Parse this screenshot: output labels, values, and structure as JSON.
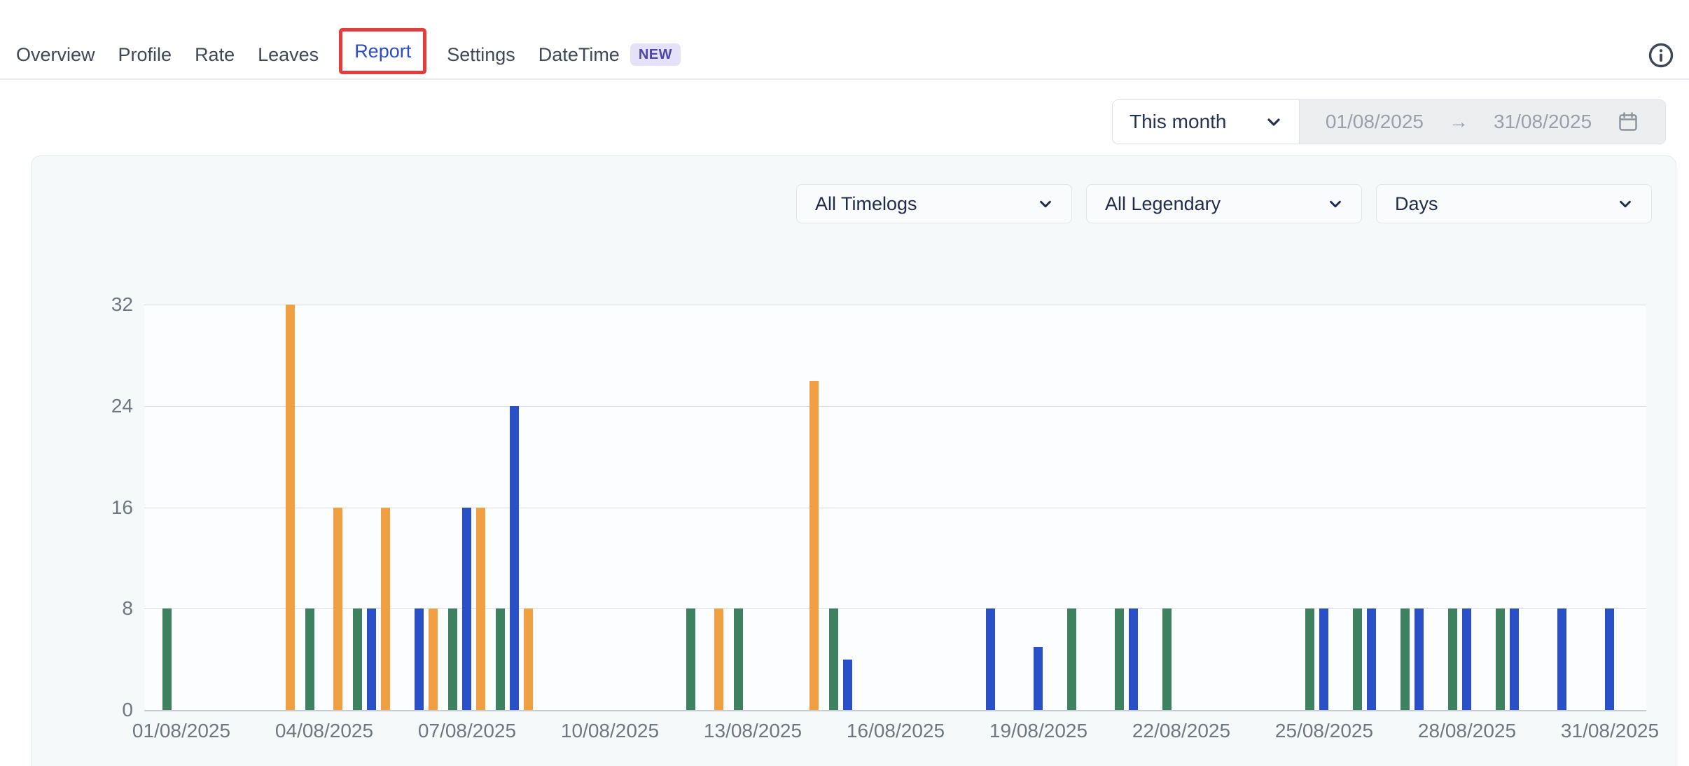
{
  "nav": {
    "tabs": [
      {
        "label": "Overview"
      },
      {
        "label": "Profile"
      },
      {
        "label": "Rate"
      },
      {
        "label": "Leaves"
      },
      {
        "label": "Report",
        "active": true,
        "highlighted_with_red_box": true
      },
      {
        "label": "Settings"
      },
      {
        "label": "DateTime",
        "badge": "NEW"
      }
    ],
    "info_icon": "info-icon"
  },
  "date_range": {
    "preset_label": "This month",
    "start_date": "01/08/2025",
    "arrow": "→",
    "end_date": "31/08/2025",
    "calendar_icon": "calendar-icon"
  },
  "filters": [
    {
      "label": "All Timelogs"
    },
    {
      "label": "All Legendary"
    },
    {
      "label": "Days"
    }
  ],
  "colors": {
    "accent_red_box": "#e23c3c",
    "active_tab_blue": "#2b4bc8",
    "badge_bg": "#e5e1f8",
    "badge_text": "#4f46a5",
    "panel_bg": "#f6f9fa",
    "bar_green": "#3d8160",
    "bar_blue": "#2a50c8",
    "bar_orange": "#f0a042"
  },
  "chart_data": {
    "type": "bar",
    "title": "",
    "xlabel": "",
    "ylabel": "",
    "grid": true,
    "legend": "none",
    "x_axis": {
      "days_in_month": 31,
      "tick_interval_days": 3,
      "tick_labels": [
        "01/08/2025",
        "04/08/2025",
        "07/08/2025",
        "10/08/2025",
        "13/08/2025",
        "16/08/2025",
        "19/08/2025",
        "22/08/2025",
        "25/08/2025",
        "28/08/2025",
        "31/08/2025"
      ]
    },
    "y_axis": {
      "min": 0,
      "max": 32,
      "ticks": [
        0,
        8,
        16,
        24,
        32
      ]
    },
    "series_colors": {
      "green": "#3d8160",
      "blue": "#2a50c8",
      "orange": "#f0a042"
    },
    "bars": [
      {
        "day": 1,
        "date": "01/08/2025",
        "series": "green",
        "value": 8
      },
      {
        "day": 3,
        "date": "03/08/2025",
        "series": "orange",
        "value": 32
      },
      {
        "day": 4,
        "date": "04/08/2025",
        "series": "green",
        "value": 8
      },
      {
        "day": 4,
        "date": "04/08/2025",
        "series": "orange",
        "value": 16
      },
      {
        "day": 5,
        "date": "05/08/2025",
        "series": "green",
        "value": 8
      },
      {
        "day": 5,
        "date": "05/08/2025",
        "series": "blue",
        "value": 8
      },
      {
        "day": 5,
        "date": "05/08/2025",
        "series": "orange",
        "value": 16
      },
      {
        "day": 6,
        "date": "06/08/2025",
        "series": "blue",
        "value": 8
      },
      {
        "day": 6,
        "date": "06/08/2025",
        "series": "orange",
        "value": 8
      },
      {
        "day": 7,
        "date": "07/08/2025",
        "series": "green",
        "value": 8
      },
      {
        "day": 7,
        "date": "07/08/2025",
        "series": "blue",
        "value": 16
      },
      {
        "day": 7,
        "date": "07/08/2025",
        "series": "orange",
        "value": 16
      },
      {
        "day": 8,
        "date": "08/08/2025",
        "series": "green",
        "value": 8
      },
      {
        "day": 8,
        "date": "08/08/2025",
        "series": "blue",
        "value": 24
      },
      {
        "day": 8,
        "date": "08/08/2025",
        "series": "orange",
        "value": 8
      },
      {
        "day": 12,
        "date": "12/08/2025",
        "series": "green",
        "value": 8
      },
      {
        "day": 12,
        "date": "12/08/2025",
        "series": "orange",
        "value": 8
      },
      {
        "day": 13,
        "date": "13/08/2025",
        "series": "green",
        "value": 8
      },
      {
        "day": 14,
        "date": "14/08/2025",
        "series": "orange",
        "value": 26
      },
      {
        "day": 15,
        "date": "15/08/2025",
        "series": "green",
        "value": 8
      },
      {
        "day": 15,
        "date": "15/08/2025",
        "series": "blue",
        "value": 4
      },
      {
        "day": 18,
        "date": "18/08/2025",
        "series": "blue",
        "value": 8
      },
      {
        "day": 19,
        "date": "19/08/2025",
        "series": "blue",
        "value": 5
      },
      {
        "day": 20,
        "date": "20/08/2025",
        "series": "green",
        "value": 8
      },
      {
        "day": 21,
        "date": "21/08/2025",
        "series": "green",
        "value": 8
      },
      {
        "day": 21,
        "date": "21/08/2025",
        "series": "blue",
        "value": 8
      },
      {
        "day": 22,
        "date": "22/08/2025",
        "series": "green",
        "value": 8
      },
      {
        "day": 25,
        "date": "25/08/2025",
        "series": "green",
        "value": 8
      },
      {
        "day": 25,
        "date": "25/08/2025",
        "series": "blue",
        "value": 8
      },
      {
        "day": 26,
        "date": "26/08/2025",
        "series": "green",
        "value": 8
      },
      {
        "day": 26,
        "date": "26/08/2025",
        "series": "blue",
        "value": 8
      },
      {
        "day": 27,
        "date": "27/08/2025",
        "series": "green",
        "value": 8
      },
      {
        "day": 27,
        "date": "27/08/2025",
        "series": "blue",
        "value": 8
      },
      {
        "day": 28,
        "date": "28/08/2025",
        "series": "green",
        "value": 8
      },
      {
        "day": 28,
        "date": "28/08/2025",
        "series": "blue",
        "value": 8
      },
      {
        "day": 29,
        "date": "29/08/2025",
        "series": "green",
        "value": 8
      },
      {
        "day": 29,
        "date": "29/08/2025",
        "series": "blue",
        "value": 8
      },
      {
        "day": 30,
        "date": "30/08/2025",
        "series": "blue",
        "value": 8
      },
      {
        "day": 31,
        "date": "31/08/2025",
        "series": "blue",
        "value": 8
      }
    ]
  }
}
